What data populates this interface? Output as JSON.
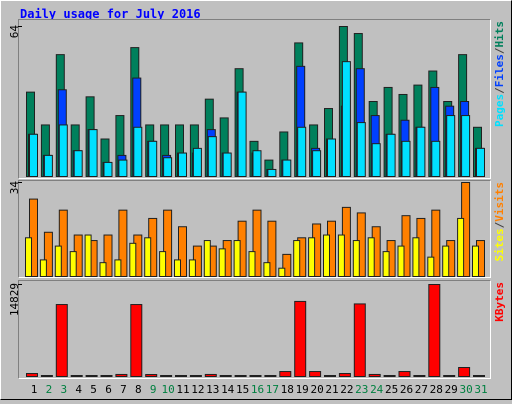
{
  "chart_data": [
    {
      "type": "bar",
      "title": "Daily usage for July 2016",
      "legend_separator": "/",
      "ylim": [
        0,
        64
      ],
      "yticks": [
        64
      ],
      "series": [
        {
          "name": "Hits",
          "color": "#00805c",
          "values": [
            36,
            22,
            52,
            22,
            34,
            16,
            26,
            55,
            22,
            22,
            22,
            22,
            33,
            25,
            46,
            15,
            7,
            19,
            57,
            22,
            29,
            64,
            61,
            32,
            38,
            35,
            39,
            45,
            32,
            52,
            21
          ]
        },
        {
          "name": "Files",
          "color": "#0040ff",
          "values": [
            18,
            9,
            37,
            11,
            20,
            6,
            9,
            42,
            15,
            9,
            10,
            10,
            20,
            10,
            36,
            10,
            3,
            7,
            47,
            12,
            16,
            30,
            46,
            26,
            18,
            24,
            21,
            38,
            30,
            32,
            12
          ]
        },
        {
          "name": "Pages",
          "color": "#00e0ff",
          "values": [
            18,
            9,
            22,
            11,
            20,
            6,
            7,
            21,
            15,
            8,
            10,
            12,
            17,
            10,
            36,
            11,
            3,
            7,
            21,
            11,
            16,
            49,
            23,
            14,
            18,
            15,
            21,
            15,
            26,
            26,
            12
          ]
        }
      ]
    },
    {
      "type": "bar",
      "legend_separator": "/",
      "ylim": [
        0,
        34
      ],
      "yticks": [
        34
      ],
      "series": [
        {
          "name": "Visits",
          "color": "#ff8000",
          "values": [
            28,
            16,
            24,
            15,
            13,
            15,
            24,
            15,
            21,
            24,
            18,
            11,
            11,
            13,
            20,
            24,
            20,
            8,
            14,
            19,
            20,
            25,
            23,
            18,
            13,
            22,
            21,
            24,
            13,
            34,
            13
          ]
        },
        {
          "name": "Sites",
          "color": "#ffff00",
          "values": [
            14,
            6,
            11,
            9,
            15,
            5,
            6,
            12,
            14,
            9,
            6,
            6,
            13,
            10,
            13,
            9,
            5,
            3,
            13,
            14,
            15,
            15,
            13,
            14,
            9,
            11,
            14,
            7,
            11,
            21,
            11
          ]
        }
      ]
    },
    {
      "type": "bar",
      "categories": [
        "1",
        "2",
        "3",
        "4",
        "5",
        "6",
        "7",
        "8",
        "9",
        "10",
        "11",
        "12",
        "13",
        "14",
        "15",
        "16",
        "17",
        "18",
        "19",
        "20",
        "21",
        "22",
        "23",
        "24",
        "25",
        "26",
        "27",
        "28",
        "29",
        "30",
        "31"
      ],
      "category_colors": [
        "#000000",
        "#008040",
        "#008040",
        "#000000",
        "#000000",
        "#000000",
        "#000000",
        "#000000",
        "#008040",
        "#008040",
        "#000000",
        "#000000",
        "#000000",
        "#000000",
        "#000000",
        "#008040",
        "#008040",
        "#000000",
        "#000000",
        "#000000",
        "#000000",
        "#000000",
        "#008040",
        "#008040",
        "#000000",
        "#000000",
        "#000000",
        "#000000",
        "#000000",
        "#008040",
        "#008040"
      ],
      "ylim": [
        0,
        14829
      ],
      "yticks": [
        14829
      ],
      "series": [
        {
          "name": "KBytes",
          "color": "#ff0000",
          "values": [
            480,
            160,
            11600,
            160,
            160,
            160,
            330,
            11600,
            320,
            160,
            160,
            160,
            330,
            160,
            160,
            160,
            160,
            800,
            12100,
            800,
            160,
            480,
            11700,
            330,
            160,
            800,
            160,
            14829,
            160,
            1450,
            160
          ]
        }
      ]
    }
  ]
}
